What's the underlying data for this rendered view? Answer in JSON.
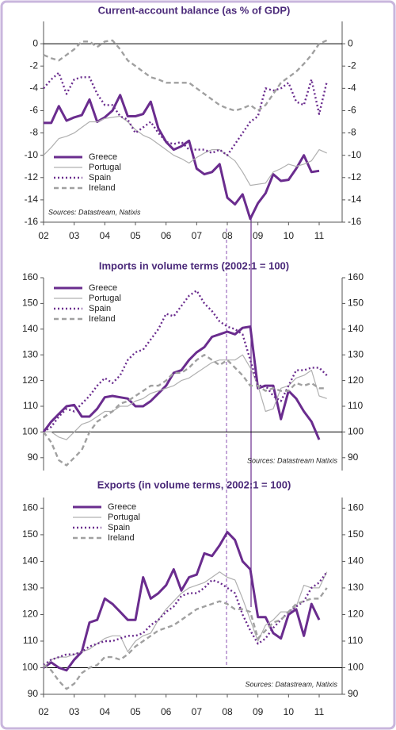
{
  "chart_data": [
    {
      "type": "line",
      "title": "Current-account balance (as % of GDP)",
      "x": [
        2002,
        2002.25,
        2002.5,
        2002.75,
        2003,
        2003.25,
        2003.5,
        2003.75,
        2004,
        2004.25,
        2004.5,
        2004.75,
        2005,
        2005.25,
        2005.5,
        2005.75,
        2006,
        2006.25,
        2006.5,
        2006.75,
        2007,
        2007.25,
        2007.5,
        2007.75,
        2008,
        2008.25,
        2008.5,
        2008.75,
        2009,
        2009.25,
        2009.5,
        2009.75,
        2010,
        2010.25,
        2010.5,
        2010.75,
        2011,
        2011.25
      ],
      "xlim": [
        2002,
        2011.75
      ],
      "xticks": [
        {
          "value": 2002,
          "label": "02"
        },
        {
          "value": 2003,
          "label": "03"
        },
        {
          "value": 2004,
          "label": "04"
        },
        {
          "value": 2005,
          "label": "05"
        },
        {
          "value": 2006,
          "label": "06"
        },
        {
          "value": 2007,
          "label": "07"
        },
        {
          "value": 2008,
          "label": "08"
        },
        {
          "value": 2009,
          "label": "09"
        },
        {
          "value": 2010,
          "label": "10"
        },
        {
          "value": 2011,
          "label": "11"
        }
      ],
      "ylim": [
        -16,
        2
      ],
      "yticks": [
        0,
        -2,
        -4,
        -6,
        -8,
        -10,
        -12,
        -14,
        -16
      ],
      "reference_line": 0,
      "legend": "lower left",
      "source": "Sources: Datastream, Natixis",
      "source_corner": "lower left",
      "series": [
        {
          "name": "Greece",
          "color": "#6a2c8e",
          "style": "thick",
          "values": [
            -7.1,
            -7.1,
            -5.6,
            -6.9,
            -6.6,
            -6.4,
            -5.0,
            -7.0,
            -6.6,
            -6.0,
            -4.6,
            -6.5,
            -6.5,
            -6.3,
            -5.2,
            -7.6,
            -8.8,
            -9.5,
            -9.2,
            -8.7,
            -11.2,
            -11.7,
            -11.5,
            -10.8,
            -13.8,
            -14.4,
            -13.5,
            -15.7,
            -14.3,
            -13.4,
            -11.7,
            -12.3,
            -12.2,
            -11.2,
            -10.0,
            -11.5,
            -11.4,
            null
          ]
        },
        {
          "name": "Portugal",
          "color": "#b0b0b0",
          "style": "thin",
          "values": [
            -10.0,
            -9.3,
            -8.5,
            -8.3,
            -8.0,
            -7.5,
            -7.0,
            -7.0,
            -6.7,
            -6.6,
            -6.5,
            -7.0,
            -7.7,
            -8.2,
            -8.5,
            -9.0,
            -9.5,
            -10.0,
            -10.3,
            -10.7,
            -10.2,
            -9.8,
            -9.5,
            -9.5,
            -10.0,
            -10.5,
            -11.5,
            -12.7,
            -12.6,
            -12.5,
            -11.5,
            -11.2,
            -10.8,
            -11.0,
            -10.8,
            -10.5,
            -9.5,
            -9.8
          ]
        },
        {
          "name": "Spain",
          "color": "#6a2c8e",
          "style": "dotted",
          "values": [
            -4.0,
            -3.2,
            -2.6,
            -4.5,
            -3.2,
            -3.0,
            -3.0,
            -4.5,
            -5.5,
            -5.5,
            -6.5,
            -6.8,
            -8.0,
            -7.5,
            -7.0,
            -8.0,
            -8.8,
            -9.0,
            -8.8,
            -9.5,
            -9.5,
            -9.5,
            -9.8,
            -9.5,
            -10.0,
            -9.0,
            -8.0,
            -7.0,
            -6.5,
            -4.0,
            -4.2,
            -4.0,
            -3.5,
            -5.2,
            -5.5,
            -3.2,
            -6.3,
            -3.4
          ]
        },
        {
          "name": "Ireland",
          "color": "#a0a0a0",
          "style": "dashed",
          "values": [
            -1.0,
            -1.3,
            -1.5,
            -1.0,
            -0.5,
            0.2,
            0.2,
            -0.3,
            0.2,
            0.3,
            -0.5,
            -1.5,
            -2.0,
            -2.5,
            -3.0,
            -3.2,
            -3.5,
            -3.5,
            -3.5,
            -3.5,
            -4.0,
            -4.5,
            -5.0,
            -5.5,
            -5.8,
            -6.0,
            -5.8,
            -5.5,
            -6.0,
            -5.5,
            -4.5,
            -3.5,
            -3.0,
            -2.5,
            -1.8,
            -1.0,
            0.0,
            0.3
          ]
        }
      ]
    },
    {
      "type": "line",
      "title": "Imports in volume terms (2002:1 = 100)",
      "x": [
        2002,
        2002.25,
        2002.5,
        2002.75,
        2003,
        2003.25,
        2003.5,
        2003.75,
        2004,
        2004.25,
        2004.5,
        2004.75,
        2005,
        2005.25,
        2005.5,
        2005.75,
        2006,
        2006.25,
        2006.5,
        2006.75,
        2007,
        2007.25,
        2007.5,
        2007.75,
        2008,
        2008.25,
        2008.5,
        2008.75,
        2009,
        2009.25,
        2009.5,
        2009.75,
        2010,
        2010.25,
        2010.5,
        2010.75,
        2011,
        2011.25
      ],
      "xlim": [
        2002,
        2011.75
      ],
      "ylim": [
        85,
        160
      ],
      "yticks": [
        160,
        150,
        140,
        130,
        120,
        110,
        100,
        90
      ],
      "reference_line": 100,
      "legend": "upper left",
      "source": "Sources: Datastream Natixis",
      "source_corner": "lower right",
      "series": [
        {
          "name": "Greece",
          "color": "#6a2c8e",
          "style": "thick",
          "values": [
            100,
            104,
            107,
            110,
            110.5,
            106,
            106,
            109,
            113.5,
            114,
            113.5,
            113,
            110,
            110,
            112,
            115,
            118,
            123,
            124,
            128,
            131,
            133,
            137,
            138,
            139,
            138,
            140.5,
            141,
            117,
            118,
            118,
            105,
            116,
            113,
            108,
            104,
            97,
            null
          ]
        },
        {
          "name": "Portugal",
          "color": "#b0b0b0",
          "style": "thin",
          "values": [
            100,
            100,
            98,
            97,
            100,
            103,
            104,
            106,
            108,
            108,
            110,
            110,
            112,
            113,
            115,
            116,
            117,
            118,
            120,
            121,
            123,
            125,
            127,
            128,
            128,
            128,
            130,
            125,
            118,
            108,
            109,
            117,
            118,
            121,
            122,
            124,
            114,
            113
          ]
        },
        {
          "name": "Spain",
          "color": "#6a2c8e",
          "style": "dotted",
          "values": [
            100,
            102,
            106,
            109,
            108,
            111,
            114,
            118,
            121,
            119,
            122,
            128,
            131,
            132,
            136,
            140,
            146,
            145,
            149,
            153,
            155,
            150,
            147,
            143,
            141,
            140,
            138,
            128,
            118,
            118,
            114,
            112,
            118,
            124,
            124,
            125,
            125,
            122
          ]
        },
        {
          "name": "Ireland",
          "color": "#a0a0a0",
          "style": "dashed",
          "values": [
            100,
            96,
            89,
            87,
            90,
            93,
            100,
            104,
            106,
            108,
            111,
            112,
            114,
            116,
            118,
            118,
            120,
            123,
            123,
            125,
            128,
            130,
            128,
            126,
            128,
            125,
            122,
            118,
            118,
            116,
            117,
            116,
            116,
            119,
            118,
            119,
            117,
            117
          ]
        }
      ]
    },
    {
      "type": "line",
      "title": "Exports (in volume terms, 2002:1 = 100)",
      "x": [
        2002,
        2002.25,
        2002.5,
        2002.75,
        2003,
        2003.25,
        2003.5,
        2003.75,
        2004,
        2004.25,
        2004.5,
        2004.75,
        2005,
        2005.25,
        2005.5,
        2005.75,
        2006,
        2006.25,
        2006.5,
        2006.75,
        2007,
        2007.25,
        2007.5,
        2007.75,
        2008,
        2008.25,
        2008.5,
        2008.75,
        2009,
        2009.25,
        2009.5,
        2009.75,
        2010,
        2010.25,
        2010.5,
        2010.75,
        2011,
        2011.25
      ],
      "xlim": [
        2002,
        2011.75
      ],
      "xticks": [
        {
          "value": 2002,
          "label": "02"
        },
        {
          "value": 2003,
          "label": "03"
        },
        {
          "value": 2004,
          "label": "04"
        },
        {
          "value": 2005,
          "label": "05"
        },
        {
          "value": 2006,
          "label": "06"
        },
        {
          "value": 2007,
          "label": "07"
        },
        {
          "value": 2008,
          "label": "08"
        },
        {
          "value": 2009,
          "label": "09"
        },
        {
          "value": 2010,
          "label": "10"
        },
        {
          "value": 2011,
          "label": "11"
        }
      ],
      "ylim": [
        90,
        164
      ],
      "yticks": [
        160,
        150,
        140,
        130,
        120,
        110,
        100,
        90
      ],
      "reference_line": 100,
      "legend": "upper center",
      "source": "Sources: Datastream, Natixis",
      "source_corner": "lower right",
      "series": [
        {
          "name": "Greece",
          "color": "#6a2c8e",
          "style": "thick",
          "values": [
            100,
            102,
            100,
            99,
            103,
            106,
            117,
            118,
            126,
            124,
            121,
            118,
            118,
            134,
            126,
            128,
            131,
            137,
            129,
            134,
            135,
            143,
            142,
            146,
            151,
            148,
            140,
            137,
            119,
            119,
            113,
            111,
            120,
            122,
            112,
            124,
            118,
            null
          ]
        },
        {
          "name": "Portugal",
          "color": "#b0b0b0",
          "style": "thin",
          "values": [
            100,
            103,
            104,
            104,
            105,
            106,
            107,
            109,
            111,
            112,
            112,
            106,
            110,
            112,
            113,
            118,
            122,
            125,
            128,
            130,
            131,
            132,
            134,
            136,
            134,
            133,
            126,
            118,
            110,
            116,
            118,
            121,
            121,
            123,
            131,
            130,
            130,
            136
          ]
        },
        {
          "name": "Spain",
          "color": "#6a2c8e",
          "style": "dotted",
          "values": [
            101,
            103,
            104,
            105,
            105,
            106,
            108,
            109,
            110,
            110,
            111,
            112,
            112,
            113,
            116,
            118,
            121,
            123,
            127,
            128,
            128,
            130,
            133,
            132,
            130,
            128,
            120,
            114,
            109,
            111,
            115,
            118,
            121,
            123,
            125,
            130,
            132,
            136
          ]
        },
        {
          "name": "Ireland",
          "color": "#a0a0a0",
          "style": "dashed",
          "values": [
            101,
            99,
            95,
            92,
            94,
            98,
            100,
            101,
            104,
            104,
            103,
            105,
            108,
            110,
            112,
            114,
            115,
            116,
            118,
            120,
            122,
            123,
            124,
            125,
            124,
            122,
            122,
            121,
            111,
            114,
            117,
            118,
            121,
            124,
            125,
            126,
            126,
            130
          ]
        }
      ]
    }
  ]
}
